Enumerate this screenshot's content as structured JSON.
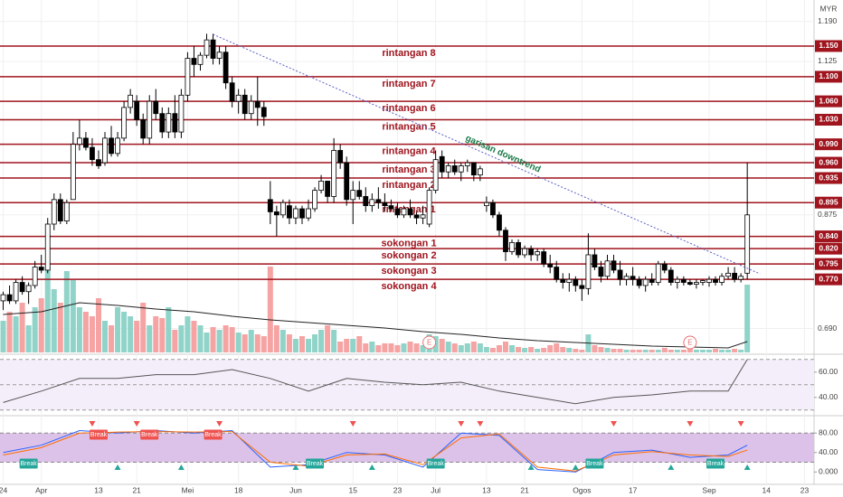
{
  "chart_data": [
    {
      "type": "candlestick",
      "currency": "MYR",
      "xlim": [
        -0.5,
        127.5
      ],
      "xticks": [
        {
          "value": 0,
          "label": "24"
        },
        {
          "value": 6,
          "label": "Apr"
        },
        {
          "value": 15,
          "label": "13"
        },
        {
          "value": 21,
          "label": "21"
        },
        {
          "value": 29,
          "label": "Mei"
        },
        {
          "value": 37,
          "label": "18"
        },
        {
          "value": 46,
          "label": "Jun"
        },
        {
          "value": 55,
          "label": "15"
        },
        {
          "value": 62,
          "label": "23"
        },
        {
          "value": 68,
          "label": "Jul"
        },
        {
          "value": 76,
          "label": "13"
        },
        {
          "value": 82,
          "label": "21"
        },
        {
          "value": 91,
          "label": "Ogos"
        },
        {
          "value": 99,
          "label": "17"
        },
        {
          "value": 111,
          "label": "Sep"
        },
        {
          "value": 120,
          "label": "14"
        },
        {
          "value": 126,
          "label": "23"
        }
      ],
      "ylim": [
        0.651,
        1.225
      ],
      "yticks": [
        {
          "value": 1.19,
          "label": "1.190"
        },
        {
          "value": 1.125,
          "label": "1.125"
        },
        {
          "value": 0.875,
          "label": "0.875"
        },
        {
          "value": 0.69,
          "label": "0.690"
        }
      ],
      "up_color": "#ffffff",
      "down_color": "#000000",
      "vol_up_color": "#8fd3c9",
      "vol_down_color": "#f5a3a3",
      "candles": [
        [
          0.735,
          0.75,
          0.72,
          0.745
        ],
        [
          0.745,
          0.76,
          0.73,
          0.735
        ],
        [
          0.735,
          0.77,
          0.73,
          0.765
        ],
        [
          0.765,
          0.775,
          0.745,
          0.75
        ],
        [
          0.75,
          0.765,
          0.73,
          0.76
        ],
        [
          0.76,
          0.8,
          0.755,
          0.79
        ],
        [
          0.79,
          0.81,
          0.78,
          0.785
        ],
        [
          0.785,
          0.87,
          0.78,
          0.86
        ],
        [
          0.86,
          0.91,
          0.85,
          0.9
        ],
        [
          0.9,
          0.91,
          0.86,
          0.865
        ],
        [
          0.865,
          0.9,
          0.86,
          0.895
        ],
        [
          0.9,
          1.01,
          0.9,
          0.99
        ],
        [
          0.99,
          1.03,
          0.98,
          1.0
        ],
        [
          1.0,
          1.01,
          0.98,
          0.985
        ],
        [
          0.985,
          1.0,
          0.955,
          0.965
        ],
        [
          0.965,
          0.98,
          0.95,
          0.955
        ],
        [
          0.96,
          1.01,
          0.955,
          1.0
        ],
        [
          1.0,
          1.02,
          0.97,
          0.975
        ],
        [
          0.975,
          1.01,
          0.97,
          1.0
        ],
        [
          1.0,
          1.06,
          0.995,
          1.05
        ],
        [
          1.05,
          1.08,
          1.04,
          1.07
        ],
        [
          1.06,
          1.07,
          1.02,
          1.03
        ],
        [
          1.03,
          1.04,
          0.99,
          1.0
        ],
        [
          1.0,
          1.07,
          0.99,
          1.06
        ],
        [
          1.06,
          1.08,
          1.03,
          1.04
        ],
        [
          1.04,
          1.05,
          1.0,
          1.01
        ],
        [
          1.01,
          1.05,
          1.0,
          1.04
        ],
        [
          1.04,
          1.07,
          1.0,
          1.01
        ],
        [
          1.01,
          1.08,
          1.0,
          1.07
        ],
        [
          1.07,
          1.14,
          1.06,
          1.13
        ],
        [
          1.13,
          1.15,
          1.1,
          1.12
        ],
        [
          1.12,
          1.14,
          1.11,
          1.135
        ],
        [
          1.135,
          1.17,
          1.13,
          1.16
        ],
        [
          1.16,
          1.17,
          1.12,
          1.13
        ],
        [
          1.13,
          1.15,
          1.12,
          1.14
        ],
        [
          1.14,
          1.15,
          1.08,
          1.09
        ],
        [
          1.09,
          1.1,
          1.05,
          1.06
        ],
        [
          1.06,
          1.08,
          1.04,
          1.07
        ],
        [
          1.07,
          1.08,
          1.03,
          1.04
        ],
        [
          1.04,
          1.07,
          1.03,
          1.06
        ],
        [
          1.06,
          1.1,
          1.02,
          1.05
        ],
        [
          1.05,
          1.06,
          1.02,
          1.035
        ],
        [
          0.9,
          0.93,
          0.86,
          0.88
        ],
        [
          0.88,
          0.89,
          0.84,
          0.875
        ],
        [
          0.875,
          0.9,
          0.87,
          0.895
        ],
        [
          0.89,
          0.9,
          0.86,
          0.87
        ],
        [
          0.87,
          0.89,
          0.86,
          0.885
        ],
        [
          0.885,
          0.89,
          0.86,
          0.87
        ],
        [
          0.87,
          0.9,
          0.865,
          0.885
        ],
        [
          0.885,
          0.92,
          0.88,
          0.915
        ],
        [
          0.915,
          0.94,
          0.91,
          0.93
        ],
        [
          0.93,
          0.93,
          0.895,
          0.905
        ],
        [
          0.905,
          1.0,
          0.895,
          0.98
        ],
        [
          0.98,
          0.99,
          0.95,
          0.96
        ],
        [
          0.96,
          0.97,
          0.89,
          0.9
        ],
        [
          0.9,
          0.93,
          0.86,
          0.915
        ],
        [
          0.915,
          0.93,
          0.9,
          0.905
        ],
        [
          0.905,
          0.92,
          0.88,
          0.89
        ],
        [
          0.89,
          0.91,
          0.88,
          0.9
        ],
        [
          0.9,
          0.92,
          0.885,
          0.895
        ],
        [
          0.895,
          0.91,
          0.88,
          0.89
        ],
        [
          0.89,
          0.9,
          0.88,
          0.885
        ],
        [
          0.885,
          0.895,
          0.87,
          0.875
        ],
        [
          0.875,
          0.89,
          0.87,
          0.885
        ],
        [
          0.885,
          0.9,
          0.87,
          0.875
        ],
        [
          0.875,
          0.88,
          0.86,
          0.87
        ],
        [
          0.87,
          0.89,
          0.86,
          0.875
        ],
        [
          0.86,
          0.92,
          0.855,
          0.915
        ],
        [
          0.915,
          0.98,
          0.91,
          0.965
        ],
        [
          0.97,
          0.98,
          0.935,
          0.945
        ],
        [
          0.945,
          0.96,
          0.935,
          0.955
        ],
        [
          0.955,
          0.965,
          0.94,
          0.945
        ],
        [
          0.945,
          0.96,
          0.93,
          0.955
        ],
        [
          0.955,
          0.965,
          0.945,
          0.96
        ],
        [
          0.96,
          0.96,
          0.93,
          0.94
        ],
        [
          0.94,
          0.955,
          0.93,
          0.95
        ],
        [
          0.89,
          0.905,
          0.88,
          0.895
        ],
        [
          0.895,
          0.9,
          0.87,
          0.875
        ],
        [
          0.875,
          0.88,
          0.84,
          0.85
        ],
        [
          0.85,
          0.855,
          0.8,
          0.815
        ],
        [
          0.815,
          0.835,
          0.81,
          0.83
        ],
        [
          0.83,
          0.835,
          0.805,
          0.81
        ],
        [
          0.81,
          0.825,
          0.805,
          0.82
        ],
        [
          0.82,
          0.825,
          0.8,
          0.81
        ],
        [
          0.81,
          0.82,
          0.8,
          0.815
        ],
        [
          0.815,
          0.82,
          0.79,
          0.795
        ],
        [
          0.795,
          0.81,
          0.78,
          0.79
        ],
        [
          0.79,
          0.8,
          0.765,
          0.77
        ],
        [
          0.77,
          0.78,
          0.755,
          0.765
        ],
        [
          0.765,
          0.78,
          0.75,
          0.77
        ],
        [
          0.77,
          0.775,
          0.75,
          0.76
        ],
        [
          0.76,
          0.77,
          0.735,
          0.755
        ],
        [
          0.755,
          0.845,
          0.745,
          0.81
        ],
        [
          0.81,
          0.82,
          0.785,
          0.79
        ],
        [
          0.79,
          0.8,
          0.765,
          0.775
        ],
        [
          0.775,
          0.81,
          0.77,
          0.8
        ],
        [
          0.8,
          0.81,
          0.78,
          0.785
        ],
        [
          0.785,
          0.8,
          0.76,
          0.77
        ],
        [
          0.77,
          0.78,
          0.76,
          0.775
        ],
        [
          0.775,
          0.79,
          0.76,
          0.77
        ],
        [
          0.77,
          0.775,
          0.755,
          0.76
        ],
        [
          0.76,
          0.775,
          0.75,
          0.77
        ],
        [
          0.77,
          0.78,
          0.76,
          0.765
        ],
        [
          0.765,
          0.8,
          0.76,
          0.795
        ],
        [
          0.795,
          0.8,
          0.78,
          0.785
        ],
        [
          0.785,
          0.79,
          0.76,
          0.765
        ],
        [
          0.765,
          0.775,
          0.755,
          0.77
        ],
        [
          0.77,
          0.775,
          0.76,
          0.765
        ],
        [
          0.765,
          0.77,
          0.76,
          0.762
        ],
        [
          0.762,
          0.77,
          0.755,
          0.765
        ],
        [
          0.765,
          0.77,
          0.76,
          0.768
        ],
        [
          0.765,
          0.775,
          0.758,
          0.77
        ],
        [
          0.77,
          0.775,
          0.76,
          0.765
        ],
        [
          0.765,
          0.78,
          0.76,
          0.775
        ],
        [
          0.775,
          0.79,
          0.77,
          0.78
        ],
        [
          0.78,
          0.79,
          0.765,
          0.77
        ],
        [
          0.77,
          0.78,
          0.765,
          0.775
        ],
        [
          0.78,
          0.96,
          0.77,
          0.875
        ]
      ],
      "volume": [
        35,
        45,
        40,
        55,
        30,
        50,
        60,
        95,
        70,
        55,
        90,
        80,
        50,
        45,
        40,
        60,
        35,
        30,
        50,
        45,
        40,
        35,
        55,
        30,
        40,
        38,
        50,
        25,
        30,
        40,
        35,
        30,
        22,
        28,
        25,
        30,
        28,
        22,
        20,
        25,
        20,
        18,
        95,
        30,
        25,
        20,
        15,
        18,
        15,
        20,
        25,
        30,
        25,
        12,
        15,
        15,
        18,
        10,
        12,
        8,
        10,
        10,
        8,
        10,
        12,
        10,
        8,
        20,
        18,
        15,
        12,
        10,
        8,
        10,
        12,
        10,
        6,
        5,
        8,
        12,
        8,
        6,
        5,
        6,
        4,
        5,
        8,
        10,
        6,
        5,
        4,
        3,
        20,
        8,
        6,
        5,
        4,
        4,
        3,
        3,
        3,
        3,
        3,
        3,
        5,
        3,
        3,
        3,
        8,
        3,
        3,
        3,
        4,
        3,
        3,
        4,
        3,
        75
      ],
      "vlim": [
        0,
        100
      ],
      "volume_ma": {
        "color": "#222222",
        "x": [
          0,
          6,
          12,
          18,
          24,
          30,
          36,
          42,
          48,
          54,
          60,
          66,
          72,
          78,
          84,
          90,
          96,
          102,
          108,
          114,
          117
        ],
        "values": [
          42,
          45,
          55,
          52,
          48,
          45,
          40,
          36,
          33,
          30,
          27,
          23,
          20,
          16,
          13,
          11,
          9,
          7,
          6,
          5,
          12
        ]
      },
      "levels": [
        {
          "name": "rintangan 8",
          "value": 1.15,
          "label": "1.150"
        },
        {
          "name": "rintangan 7",
          "value": 1.1,
          "label": "1.100"
        },
        {
          "name": "rintangan 6",
          "value": 1.06,
          "label": "1.060"
        },
        {
          "name": "rintangan 5",
          "value": 1.03,
          "label": "1.030"
        },
        {
          "name": "rintangan 4",
          "value": 0.99,
          "label": "0.990"
        },
        {
          "name": "rintangan 3",
          "value": 0.96,
          "label": "0.960"
        },
        {
          "name": "rintangan 2",
          "value": 0.935,
          "label": "0.935"
        },
        {
          "name": "rintangan 1",
          "value": 0.895,
          "label": "0.895"
        },
        {
          "name": "sokongan 1",
          "value": 0.84,
          "label": "0.840"
        },
        {
          "name": "sokongan 2",
          "value": 0.82,
          "label": "0.820"
        },
        {
          "name": "sokongan 3",
          "value": 0.795,
          "label": "0.795"
        },
        {
          "name": "sokongan 4",
          "value": 0.77,
          "label": "0.770"
        }
      ],
      "level_color": "#a0141e",
      "trendline": {
        "label": "garisan downtrend",
        "color": "#5b5fc7",
        "x": [
          33,
          119
        ],
        "values": [
          1.169,
          0.779
        ]
      },
      "events": [
        {
          "x": 67,
          "label": "E"
        },
        {
          "x": 108,
          "label": "E"
        }
      ]
    },
    {
      "type": "line",
      "ylim": [
        27,
        72
      ],
      "yticks": [
        {
          "value": 60,
          "label": "60.00"
        },
        {
          "value": 40,
          "label": "40.00"
        }
      ],
      "guides": [
        70,
        50,
        30
      ],
      "x": [
        0,
        6,
        12,
        18,
        24,
        30,
        36,
        42,
        48,
        54,
        60,
        66,
        72,
        78,
        84,
        90,
        96,
        102,
        108,
        114,
        117
      ],
      "series": [
        {
          "color": "#555555",
          "values": [
            36,
            45,
            55,
            55,
            58,
            58,
            62,
            55,
            45,
            55,
            52,
            50,
            52,
            45,
            40,
            35,
            40,
            42,
            45,
            45,
            70
          ]
        }
      ]
    },
    {
      "type": "line",
      "ylim": [
        -18,
        112
      ],
      "yticks": [
        {
          "value": 80,
          "label": "80.00"
        },
        {
          "value": 40,
          "label": "40.00"
        },
        {
          "value": 0,
          "label": "0.000"
        }
      ],
      "zone": [
        20,
        80
      ],
      "x": [
        0,
        6,
        12,
        18,
        24,
        30,
        36,
        42,
        48,
        54,
        60,
        66,
        72,
        78,
        84,
        90,
        96,
        102,
        108,
        114,
        117
      ],
      "series": [
        {
          "color": "#2962ff",
          "values": [
            40,
            55,
            85,
            80,
            85,
            80,
            85,
            10,
            15,
            40,
            35,
            10,
            80,
            75,
            5,
            0,
            40,
            45,
            30,
            35,
            55
          ]
        },
        {
          "color": "#ff6d00",
          "values": [
            35,
            50,
            80,
            82,
            83,
            82,
            83,
            20,
            12,
            35,
            37,
            15,
            70,
            78,
            10,
            2,
            35,
            42,
            35,
            32,
            45
          ]
        }
      ],
      "signals": {
        "label": "Break",
        "breaks_down": [
          15,
          23,
          33
        ],
        "breaks_up": [
          4,
          49,
          68,
          93,
          112
        ],
        "triangles_down": [
          14,
          21,
          34,
          55,
          72,
          75,
          96,
          108,
          116
        ],
        "triangles_up": [
          18,
          28,
          46,
          58,
          83,
          90,
          105,
          117
        ]
      }
    }
  ]
}
